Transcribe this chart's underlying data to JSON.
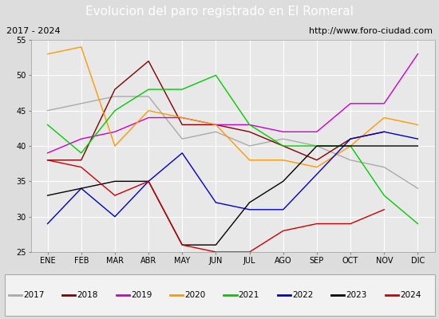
{
  "title": "Evolucion del paro registrado en El Romeral",
  "subtitle_left": "2017 - 2024",
  "subtitle_right": "http://www.foro-ciudad.com",
  "months": [
    "ENE",
    "FEB",
    "MAR",
    "ABR",
    "MAY",
    "JUN",
    "JUL",
    "AGO",
    "SEP",
    "OCT",
    "NOV",
    "DIC"
  ],
  "ylim": [
    25,
    55
  ],
  "yticks": [
    25,
    30,
    35,
    40,
    45,
    50,
    55
  ],
  "series": {
    "2017": {
      "color": "#aaaaaa",
      "values": [
        45,
        46,
        47,
        47,
        41,
        42,
        40,
        41,
        40,
        38,
        37,
        34
      ]
    },
    "2018": {
      "color": "#800000",
      "values": [
        38,
        38,
        48,
        52,
        43,
        43,
        42,
        40,
        38,
        41,
        42,
        null
      ]
    },
    "2019": {
      "color": "#cc00cc",
      "values": [
        39,
        41,
        42,
        44,
        44,
        43,
        43,
        42,
        42,
        46,
        46,
        53
      ]
    },
    "2020": {
      "color": "#ff9900",
      "values": [
        53,
        54,
        40,
        45,
        44,
        43,
        38,
        38,
        37,
        40,
        44,
        43
      ]
    },
    "2021": {
      "color": "#00cc00",
      "values": [
        43,
        39,
        45,
        48,
        48,
        50,
        43,
        40,
        40,
        40,
        33,
        29
      ]
    },
    "2022": {
      "color": "#0000cc",
      "values": [
        29,
        34,
        30,
        35,
        39,
        32,
        31,
        31,
        36,
        41,
        42,
        41
      ]
    },
    "2023": {
      "color": "#000000",
      "values": [
        33,
        34,
        35,
        35,
        26,
        26,
        32,
        35,
        40,
        40,
        40,
        40
      ]
    },
    "2024": {
      "color": "#cc0000",
      "values": [
        38,
        37,
        33,
        35,
        26,
        25,
        25,
        28,
        29,
        29,
        31,
        null
      ]
    }
  },
  "background_color": "#dddddd",
  "plot_bg_color": "#e8e8e8",
  "title_bg_color": "#4f81bd",
  "title_color": "#ffffff",
  "subtitle_bg_color": "#d0d0d0",
  "legend_bg_color": "#f2f2f2",
  "grid_color": "#ffffff",
  "title_fontsize": 11,
  "subtitle_fontsize": 8,
  "tick_fontsize": 7,
  "legend_fontsize": 7.5
}
